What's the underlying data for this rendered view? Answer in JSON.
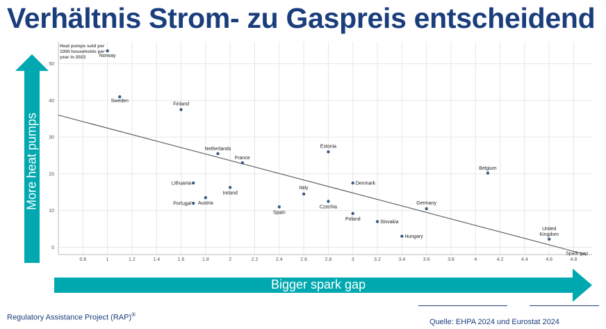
{
  "title": "Verhältnis Strom- zu Gaspreis entscheidend",
  "left_arrow_label": "More heat pumps",
  "bottom_arrow_label": "Bigger spark gap",
  "footer_left": "Regulatory Assistance Project (RAP)",
  "footer_left_sup": "®",
  "footer_right": "Quelle: EHPA 2024 und Eurostat 2024",
  "colors": {
    "title": "#1a3d7c",
    "arrow": "#00a9b0",
    "point": "#3d5a80",
    "trend": "#555555"
  },
  "chart_data": {
    "type": "scatter",
    "ylabel_lines": [
      "Heat pumps sold per",
      "1000 households per",
      "year in 2023"
    ],
    "xlabel": "Spark gap",
    "xlim": [
      0.6,
      4.95
    ],
    "ylim": [
      -2,
      56
    ],
    "xticks": [
      "0.8",
      "1",
      "1.2",
      "1.4",
      "1.6",
      "1.8",
      "2",
      "2.2",
      "2.4",
      "2.6",
      "2.8",
      "3",
      "3.2",
      "3.4",
      "3.6",
      "3.8",
      "4",
      "4.2",
      "4.4",
      "4.6",
      "4.8"
    ],
    "yticks": [
      "0",
      "10",
      "20",
      "30",
      "40",
      "50"
    ],
    "grid": true,
    "points": [
      {
        "label": [
          "Norway"
        ],
        "x": 1.0,
        "y": 53.5
      },
      {
        "label": [
          "Sweden"
        ],
        "x": 1.1,
        "y": 41
      },
      {
        "label": [
          "Finland"
        ],
        "x": 1.6,
        "y": 37.5
      },
      {
        "label": [
          "Netherlands"
        ],
        "x": 1.9,
        "y": 25.5
      },
      {
        "label": [
          "France"
        ],
        "x": 2.1,
        "y": 23
      },
      {
        "label": [
          "Estonia"
        ],
        "x": 2.8,
        "y": 26
      },
      {
        "label": [
          "Belgium"
        ],
        "x": 4.1,
        "y": 20.2
      },
      {
        "label": [
          "Lithuania"
        ],
        "x": 1.7,
        "y": 17.5
      },
      {
        "label": [
          "Ireland"
        ],
        "x": 2.0,
        "y": 16.3
      },
      {
        "label": [
          "Italy"
        ],
        "x": 2.6,
        "y": 14.5
      },
      {
        "label": [
          "Denmark"
        ],
        "x": 3.0,
        "y": 17.5
      },
      {
        "label": [
          "Portugal"
        ],
        "x": 1.7,
        "y": 12
      },
      {
        "label": [
          "Austria"
        ],
        "x": 1.8,
        "y": 13.5
      },
      {
        "label": [
          "Spain"
        ],
        "x": 2.4,
        "y": 11
      },
      {
        "label": [
          "Czechia"
        ],
        "x": 2.8,
        "y": 12.5
      },
      {
        "label": [
          "Poland"
        ],
        "x": 3.0,
        "y": 9.2
      },
      {
        "label": [
          "Slovakia"
        ],
        "x": 3.2,
        "y": 7
      },
      {
        "label": [
          "Germany"
        ],
        "x": 3.6,
        "y": 10.5
      },
      {
        "label": [
          "Hungary"
        ],
        "x": 3.4,
        "y": 3
      },
      {
        "label": [
          "United",
          "Kingdom"
        ],
        "x": 4.6,
        "y": 2.2
      }
    ],
    "trendline": {
      "x": [
        0.6,
        4.9
      ],
      "y": [
        36,
        -2
      ]
    }
  }
}
